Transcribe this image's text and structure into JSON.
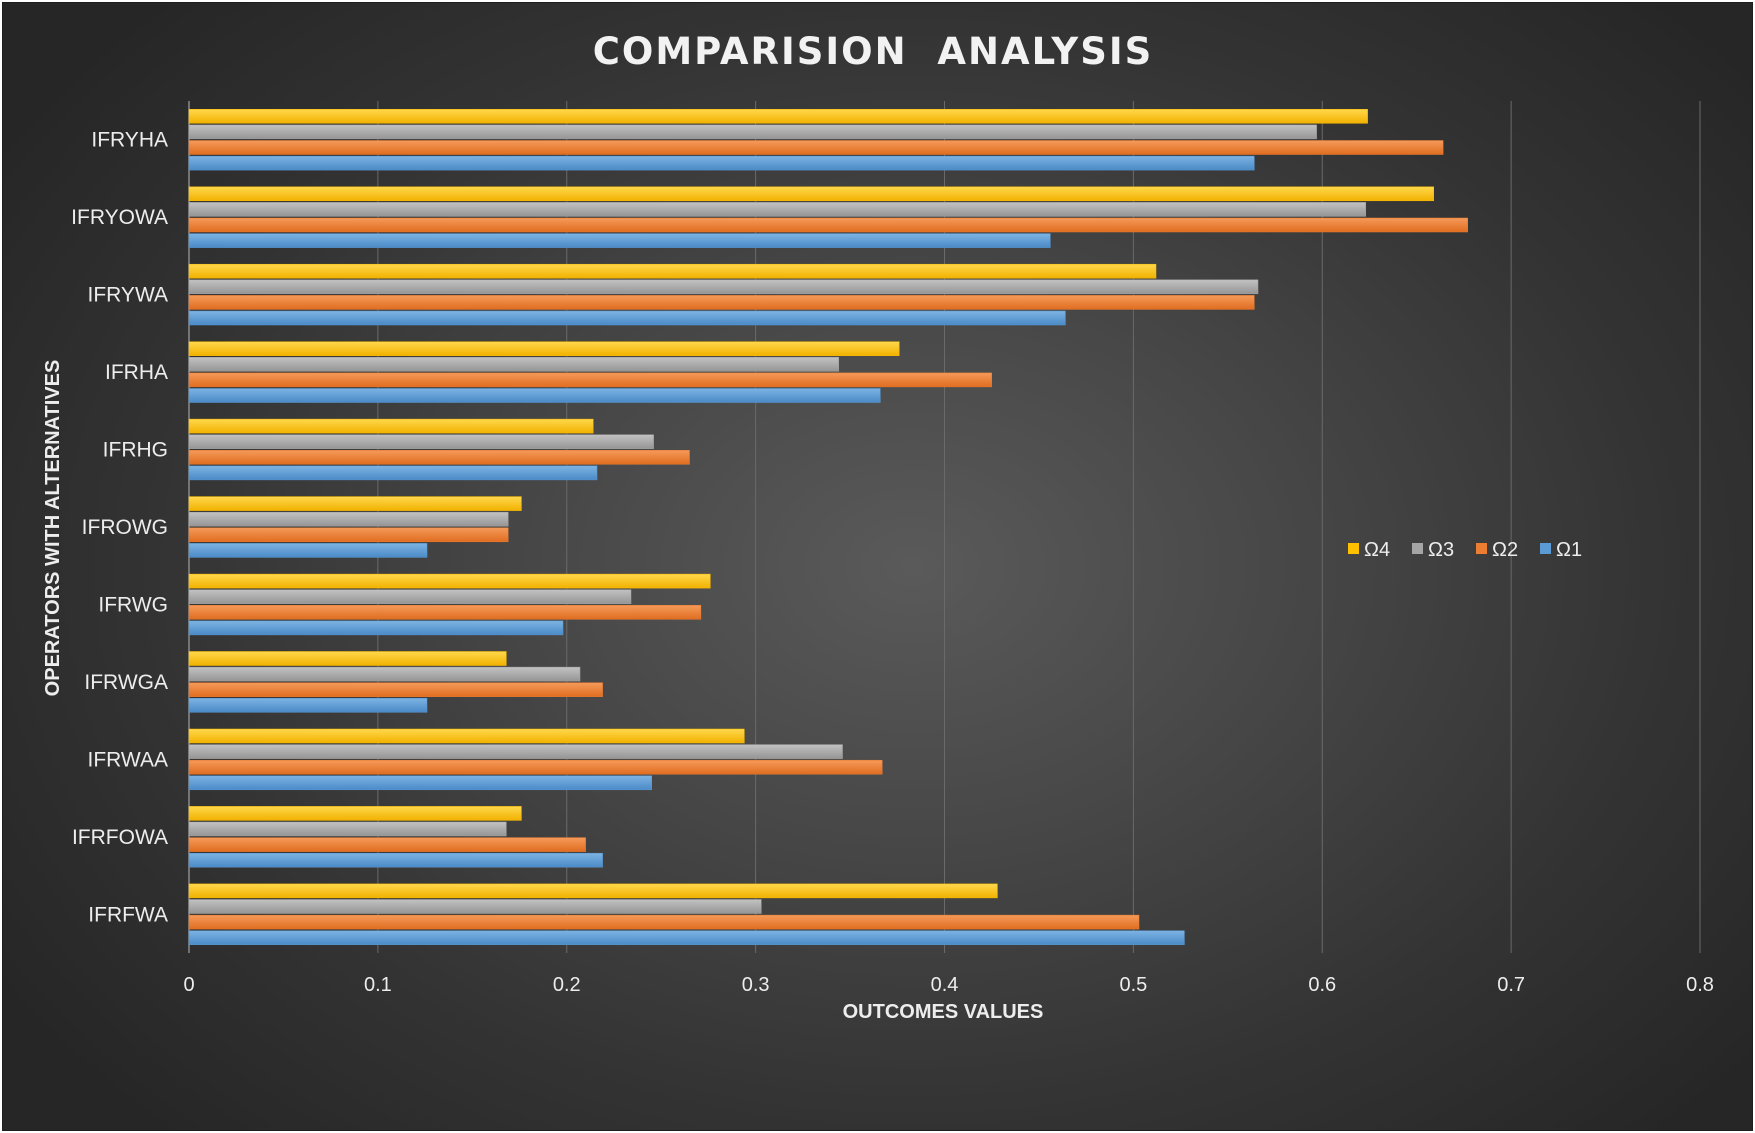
{
  "chart_data": {
    "type": "bar",
    "orientation": "horizontal",
    "title": "COMPARISION  ANALYSIS",
    "xlabel": "OUTCOMES VALUES",
    "ylabel": "OPERATORS WITH ALTERNATIVES",
    "xlim": [
      0,
      0.8
    ],
    "xticks": [
      "0",
      "0.1",
      "0.2",
      "0.3",
      "0.4",
      "0.5",
      "0.6",
      "0.7",
      "0.8"
    ],
    "grid": true,
    "legend_position": "right",
    "categories": [
      "IFRYHA",
      "IFRYOWA",
      "IFRYWA",
      "IFRHA",
      "IFRHG",
      "IFROWG",
      "IFRWG",
      "IFRWGA",
      "IFRWAA",
      "IFRFOWA",
      "IFRFWA"
    ],
    "series": [
      {
        "name": "Ω4",
        "color": "#FFC000",
        "values": [
          0.624,
          0.659,
          0.512,
          0.376,
          0.214,
          0.176,
          0.276,
          0.168,
          0.294,
          0.176,
          0.428
        ]
      },
      {
        "name": "Ω3",
        "color": "#A5A5A5",
        "values": [
          0.597,
          0.623,
          0.566,
          0.344,
          0.246,
          0.169,
          0.234,
          0.207,
          0.346,
          0.168,
          0.303
        ]
      },
      {
        "name": "Ω2",
        "color": "#ED7D31",
        "values": [
          0.664,
          0.677,
          0.564,
          0.425,
          0.265,
          0.169,
          0.271,
          0.219,
          0.367,
          0.21,
          0.503
        ]
      },
      {
        "name": "Ω1",
        "color": "#5B9BD5",
        "values": [
          0.564,
          0.456,
          0.464,
          0.366,
          0.216,
          0.126,
          0.198,
          0.126,
          0.245,
          0.219,
          0.527
        ]
      }
    ]
  }
}
